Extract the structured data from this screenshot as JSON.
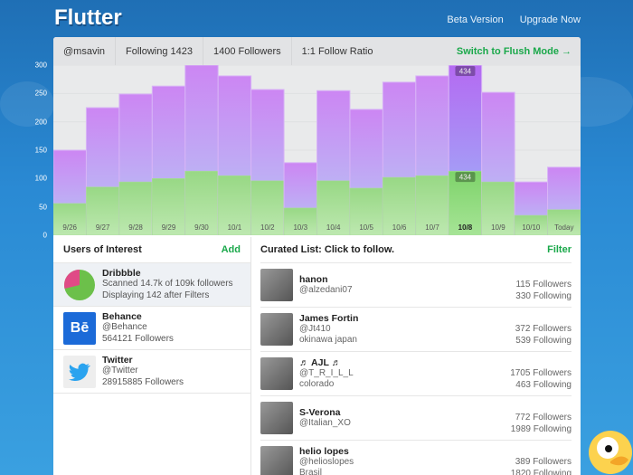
{
  "app": {
    "title": "Flutter",
    "nav": [
      "Beta Version",
      "Upgrade Now"
    ]
  },
  "stats": {
    "handle": "@msavin",
    "following": "Following 1423",
    "followers": "1400 Followers",
    "ratio": "1:1 Follow Ratio",
    "switch": "Switch to Flush Mode →"
  },
  "colors": {
    "accent": "#1aa84a",
    "purple": "#c98af2",
    "green": "#9fdc8a",
    "background": "#2a8ad4"
  },
  "chart_data": {
    "type": "bar",
    "stacked": false,
    "ylim": [
      0,
      300
    ],
    "yticks": [
      0,
      50,
      100,
      150,
      200,
      250,
      300
    ],
    "categories": [
      "9/26",
      "9/27",
      "9/28",
      "9/29",
      "9/30",
      "10/1",
      "10/2",
      "10/3",
      "10/4",
      "10/5",
      "10/6",
      "10/7",
      "10/8",
      "10/9",
      "10/10",
      "Today"
    ],
    "series": [
      {
        "values": [
          150,
          225,
          249,
          263,
          300,
          281,
          257,
          128,
          255,
          222,
          270,
          281,
          300,
          252,
          94,
          120
        ]
      },
      {
        "values": [
          56,
          85,
          94,
          100,
          113,
          105,
          96,
          48,
          96,
          83,
          102,
          105,
          113,
          94,
          35,
          45
        ]
      }
    ],
    "highlight": {
      "category": "10/8",
      "labels": [
        "434",
        "434"
      ]
    }
  },
  "users": {
    "title": "Users of Interest",
    "action": "Add",
    "items": [
      {
        "name": "Dribbble",
        "line1": "Scanned 14.7k of 109k followers",
        "line2": "Displaying 142 after Filters",
        "icon": "dribbble-pie-icon"
      },
      {
        "name": "Behance",
        "line1": "@Behance",
        "line2": "564121 Followers",
        "icon": "behance-icon",
        "glyph": "Bē"
      },
      {
        "name": "Twitter",
        "line1": "@Twitter",
        "line2": "28915885 Followers",
        "icon": "twitter-bird-icon"
      }
    ]
  },
  "curated": {
    "title": "Curated List: Click to follow.",
    "action": "Filter",
    "items": [
      {
        "name": "hanon",
        "handle": "@alzedani07",
        "location": "",
        "followers": "115 Followers",
        "following": "330 Following"
      },
      {
        "name": "James Fortin",
        "handle": "@Jt410",
        "location": "okinawa japan",
        "followers": "372 Followers",
        "following": "539 Following"
      },
      {
        "name": "♬ AJL ♬",
        "handle": "@T_R_I_L_L",
        "location": "colorado",
        "followers": "1705 Followers",
        "following": "463 Following"
      },
      {
        "name": "S-Verona",
        "handle": "@Italian_XO",
        "location": "",
        "followers": "772 Followers",
        "following": "1989 Following"
      },
      {
        "name": "helio lopes",
        "handle": "@helioslopes",
        "location": "Brasil",
        "followers": "389 Followers",
        "following": "1820 Following"
      }
    ]
  }
}
